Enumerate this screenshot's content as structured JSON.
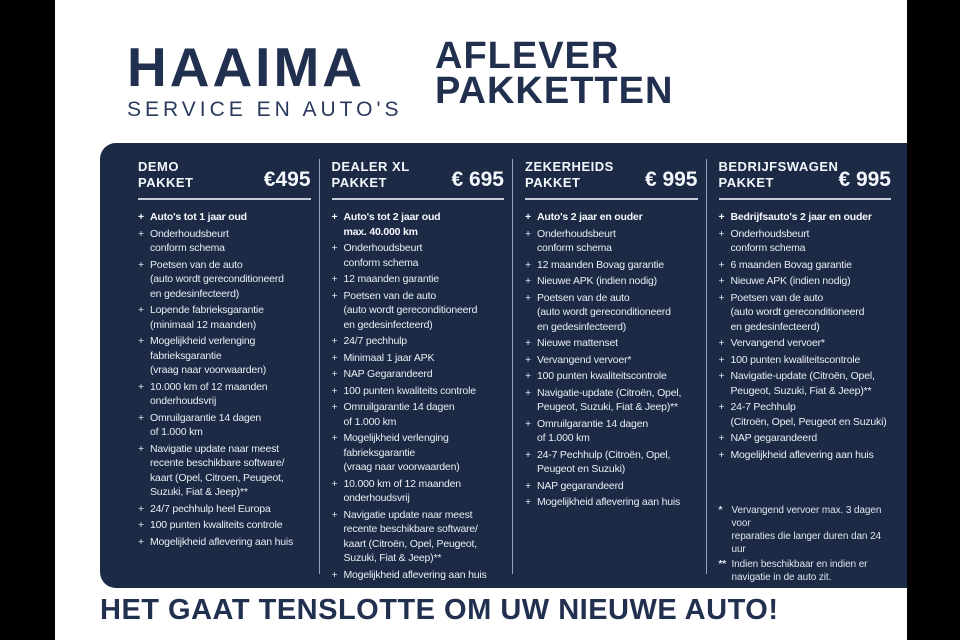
{
  "ui": {
    "bullet": "+"
  },
  "colors": {
    "panel_navy": "#1c2a45",
    "headline_navy": "#22304f",
    "panel_text": "#e9edf4",
    "divider": "#96a1b5",
    "rule": "#c5cdda",
    "side_bars": "#000000"
  },
  "header": {
    "brand_name": "HAAIMA",
    "brand_sub": "SERVICE EN AUTO'S",
    "title": "AFLEVER\nPAKKETTEN"
  },
  "packages": [
    {
      "name": "DEMO\nPAKKET",
      "price": "€495",
      "items": [
        {
          "text": "Auto's tot 1 jaar oud",
          "bold": true
        },
        {
          "text": "Onderhoudsbeurt\nconform schema"
        },
        {
          "text": "Poetsen van de auto\n(auto wordt gereconditioneerd\nen gedesinfecteerd)"
        },
        {
          "text": "Lopende fabrieksgarantie\n(minimaal 12 maanden)"
        },
        {
          "text": "Mogelijkheid verlenging\nfabrieksgarantie\n(vraag naar voorwaarden)"
        },
        {
          "text": "10.000 km of 12 maanden\nonderhoudsvrij"
        },
        {
          "text": "Omruilgarantie 14 dagen\nof 1.000 km"
        },
        {
          "text": "Navigatie update naar meest\nrecente beschikbare software/\nkaart (Opel, Citroen, Peugeot,\nSuzuki, Fiat & Jeep)**"
        },
        {
          "text": "24/7 pechhulp heel Europa"
        },
        {
          "text": "100 punten kwaliteits controle"
        },
        {
          "text": "Mogelijkheid aflevering aan huis"
        }
      ]
    },
    {
      "name": "DEALER XL\nPAKKET",
      "price": "€ 695",
      "items": [
        {
          "text": "Auto's tot 2 jaar oud\nmax. 40.000 km",
          "bold": true
        },
        {
          "text": "Onderhoudsbeurt\nconform schema"
        },
        {
          "text": "12 maanden garantie"
        },
        {
          "text": "Poetsen van de auto\n(auto wordt gereconditioneerd\nen gedesinfecteerd)"
        },
        {
          "text": "24/7 pechhulp"
        },
        {
          "text": "Minimaal 1 jaar APK"
        },
        {
          "text": "NAP Gegarandeerd"
        },
        {
          "text": "100 punten kwaliteits controle"
        },
        {
          "text": "Omruilgarantie 14 dagen\nof 1.000 km"
        },
        {
          "text": "Mogelijkheid verlenging\nfabrieksgarantie\n(vraag naar voorwaarden)"
        },
        {
          "text": "10.000 km of 12 maanden\nonderhoudsvrij"
        },
        {
          "text": "Navigatie update naar meest\nrecente beschikbare software/\nkaart (Citroën, Opel, Peugeot,\nSuzuki, Fiat & Jeep)**"
        },
        {
          "text": "Mogelijkheid aflevering aan huis"
        }
      ]
    },
    {
      "name": "ZEKERHEIDS\nPAKKET",
      "price": "€ 995",
      "items": [
        {
          "text": "Auto's 2 jaar en ouder",
          "bold": true
        },
        {
          "text": "Onderhoudsbeurt\nconform schema"
        },
        {
          "text": "12 maanden Bovag garantie"
        },
        {
          "text": "Nieuwe APK (indien nodig)"
        },
        {
          "text": "Poetsen van de auto\n(auto wordt gereconditioneerd\nen gedesinfecteerd)"
        },
        {
          "text": "Nieuwe mattenset"
        },
        {
          "text": "Vervangend vervoer*"
        },
        {
          "text": "100 punten kwaliteitscontrole"
        },
        {
          "text": "Navigatie-update (Citroën, Opel,\nPeugeot, Suzuki, Fiat & Jeep)**"
        },
        {
          "text": "Omruilgarantie 14 dagen\nof 1.000 km"
        },
        {
          "text": "24-7 Pechhulp (Citroën, Opel,\nPeugeot en Suzuki)"
        },
        {
          "text": "NAP gegarandeerd"
        },
        {
          "text": "Mogelijkheid aflevering aan huis"
        }
      ]
    },
    {
      "name": "BEDRIJFSWAGEN\nPAKKET",
      "price": "€ 995",
      "items": [
        {
          "text": "Bedrijfsauto's 2 jaar en ouder",
          "bold": true
        },
        {
          "text": "Onderhoudsbeurt\nconform schema"
        },
        {
          "text": "6 maanden Bovag garantie"
        },
        {
          "text": "Nieuwe APK (indien nodig)"
        },
        {
          "text": "Poetsen van de auto\n(auto wordt gereconditioneerd\nen gedesinfecteerd)"
        },
        {
          "text": "Vervangend vervoer*"
        },
        {
          "text": "100 punten kwaliteitscontrole"
        },
        {
          "text": "Navigatie-update (Citroën, Opel,\nPeugeot, Suzuki, Fiat & Jeep)**"
        },
        {
          "text": "24-7 Pechhulp\n(Citroën, Opel, Peugeot en Suzuki)"
        },
        {
          "text": "NAP gegarandeerd"
        },
        {
          "text": "Mogelijkheid aflevering aan huis"
        }
      ]
    }
  ],
  "footnotes": [
    {
      "marker": "*",
      "text": "Vervangend vervoer max. 3 dagen voor\nreparaties die langer duren dan 24 uur"
    },
    {
      "marker": "**",
      "text": "Indien beschikbaar en indien er\nnavigatie in de auto zit."
    }
  ],
  "footer": {
    "tagline": "HET GAAT TENSLOTTE OM UW NIEUWE AUTO!"
  }
}
